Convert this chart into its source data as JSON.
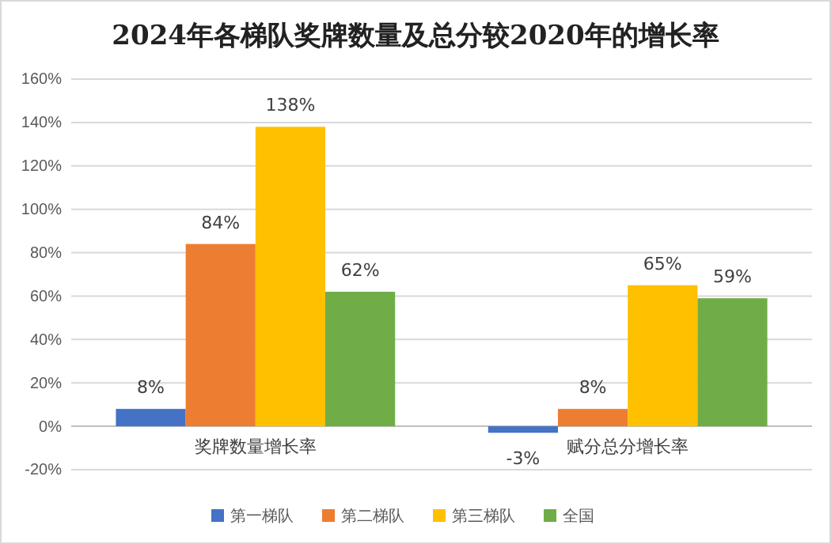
{
  "chart_data": {
    "type": "bar",
    "title": "2024年各梯队奖牌数量及总分较2020年的增长率",
    "categories": [
      "奖牌数量增长率",
      "赋分总分增长率"
    ],
    "series": [
      {
        "name": "第一梯队",
        "color": "#4472c4",
        "values": [
          8,
          -3
        ],
        "value_labels": [
          "8%",
          "-3%"
        ]
      },
      {
        "name": "第二梯队",
        "color": "#ed7d31",
        "values": [
          84,
          8
        ],
        "value_labels": [
          "84%",
          "8%"
        ]
      },
      {
        "name": "第三梯队",
        "color": "#ffc000",
        "values": [
          138,
          65
        ],
        "value_labels": [
          "138%",
          "65%"
        ]
      },
      {
        "name": "全国",
        "color": "#70ad47",
        "values": [
          62,
          59
        ],
        "value_labels": [
          "62%",
          "59%"
        ]
      }
    ],
    "ylim": [
      -20,
      160
    ],
    "yticks": [
      {
        "value": -20,
        "label": "-20%"
      },
      {
        "value": 0,
        "label": "0%"
      },
      {
        "value": 20,
        "label": "20%"
      },
      {
        "value": 40,
        "label": "40%"
      },
      {
        "value": 60,
        "label": "60%"
      },
      {
        "value": 80,
        "label": "80%"
      },
      {
        "value": 100,
        "label": "100%"
      },
      {
        "value": 120,
        "label": "120%"
      },
      {
        "value": 140,
        "label": "140%"
      },
      {
        "value": 160,
        "label": "160%"
      }
    ],
    "grid": "y",
    "legend": "bottom"
  }
}
